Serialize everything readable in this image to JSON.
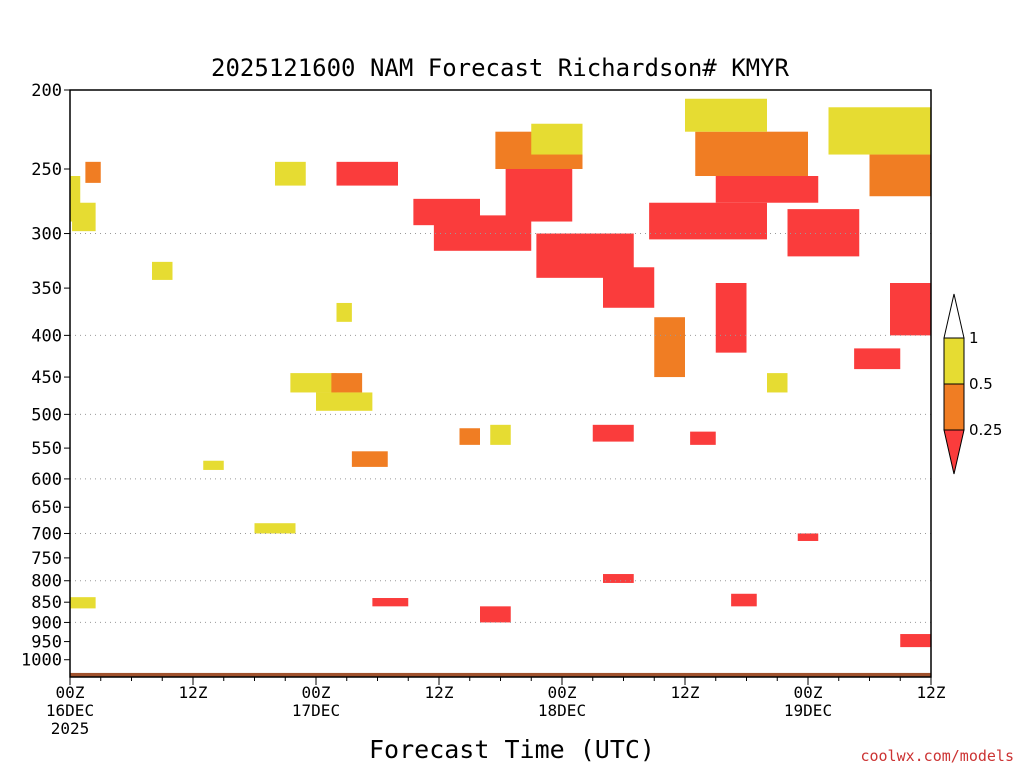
{
  "chart_data": {
    "type": "heatmap",
    "title": "2025121600 NAM Forecast Richardson# KMYR",
    "xlabel": "Forecast Time (UTC)",
    "ylabel": "",
    "x_range_hours": [
      0,
      84
    ],
    "y_range_hPa": [
      200,
      1050
    ],
    "y_scale": "log-pressure",
    "y_ticks": [
      200,
      250,
      300,
      350,
      400,
      450,
      500,
      550,
      600,
      650,
      700,
      750,
      800,
      850,
      900,
      950,
      1000
    ],
    "gridlines_hPa": [
      300,
      400,
      500,
      600,
      700,
      800,
      900
    ],
    "x_ticks": [
      {
        "hour": 0,
        "labels": [
          "00Z",
          "16DEC",
          "2025"
        ]
      },
      {
        "hour": 12,
        "labels": [
          "12Z"
        ]
      },
      {
        "hour": 24,
        "labels": [
          "00Z",
          "17DEC"
        ]
      },
      {
        "hour": 36,
        "labels": [
          "12Z"
        ]
      },
      {
        "hour": 48,
        "labels": [
          "00Z",
          "18DEC"
        ]
      },
      {
        "hour": 60,
        "labels": [
          "12Z"
        ]
      },
      {
        "hour": 72,
        "labels": [
          "00Z",
          "19DEC"
        ]
      },
      {
        "hour": 84,
        "labels": [
          "12Z"
        ]
      }
    ],
    "legend": {
      "placement": "right",
      "levels": [
        {
          "label": "1",
          "threshold": 1
        },
        {
          "label": "0.5",
          "threshold": 0.5
        },
        {
          "label": "0.25",
          "threshold": 0.25
        }
      ],
      "bins": [
        {
          "range": "> 1",
          "color": "#ffffff"
        },
        {
          "range": "0.5 - 1",
          "color": "#e6dc32"
        },
        {
          "range": "0.25 - 0.5",
          "color": "#f07d23"
        },
        {
          "range": "< 0.25",
          "color": "#fa3c3c"
        }
      ]
    },
    "ground_color": "#a0522d",
    "regions": [
      {
        "class": "yellow",
        "h": [
          0,
          1
        ],
        "p": [
          255,
          290
        ]
      },
      {
        "class": "orange",
        "h": [
          1.5,
          3
        ],
        "p": [
          245,
          260
        ]
      },
      {
        "class": "yellow",
        "h": [
          0.2,
          2.5
        ],
        "p": [
          275,
          298
        ]
      },
      {
        "class": "yellow",
        "h": [
          8,
          10
        ],
        "p": [
          325,
          342
        ]
      },
      {
        "class": "yellow",
        "h": [
          20,
          23
        ],
        "p": [
          245,
          262
        ]
      },
      {
        "class": "red",
        "h": [
          26,
          32
        ],
        "p": [
          245,
          262
        ]
      },
      {
        "class": "yellow",
        "h": [
          26,
          27.5
        ],
        "p": [
          365,
          385
        ]
      },
      {
        "class": "yellow",
        "h": [
          21.5,
          26
        ],
        "p": [
          445,
          470
        ]
      },
      {
        "class": "orange",
        "h": [
          25.5,
          28.5
        ],
        "p": [
          445,
          470
        ]
      },
      {
        "class": "yellow",
        "h": [
          24,
          29.5
        ],
        "p": [
          470,
          495
        ]
      },
      {
        "class": "red",
        "h": [
          33.5,
          40
        ],
        "p": [
          272,
          293
        ]
      },
      {
        "class": "red",
        "h": [
          35.5,
          45
        ],
        "p": [
          285,
          315
        ]
      },
      {
        "class": "red",
        "h": [
          42.5,
          49
        ],
        "p": [
          238,
          290
        ]
      },
      {
        "class": "red",
        "h": [
          45.5,
          55
        ],
        "p": [
          300,
          340
        ]
      },
      {
        "class": "red",
        "h": [
          52,
          57
        ],
        "p": [
          330,
          370
        ]
      },
      {
        "class": "orange",
        "h": [
          41.5,
          50
        ],
        "p": [
          225,
          250
        ]
      },
      {
        "class": "yellow",
        "h": [
          45,
          50
        ],
        "p": [
          220,
          240
        ]
      },
      {
        "class": "red",
        "h": [
          56.5,
          68
        ],
        "p": [
          275,
          305
        ]
      },
      {
        "class": "red",
        "h": [
          63,
          73
        ],
        "p": [
          255,
          275
        ]
      },
      {
        "class": "orange",
        "h": [
          61,
          72
        ],
        "p": [
          225,
          255
        ]
      },
      {
        "class": "yellow",
        "h": [
          60,
          68
        ],
        "p": [
          205,
          225
        ]
      },
      {
        "class": "red",
        "h": [
          70,
          77
        ],
        "p": [
          280,
          320
        ]
      },
      {
        "class": "yellow",
        "h": [
          74,
          84
        ],
        "p": [
          210,
          240
        ]
      },
      {
        "class": "orange",
        "h": [
          78,
          84
        ],
        "p": [
          240,
          270
        ]
      },
      {
        "class": "red",
        "h": [
          80,
          84
        ],
        "p": [
          345,
          400
        ]
      },
      {
        "class": "red",
        "h": [
          76.5,
          81
        ],
        "p": [
          415,
          440
        ]
      },
      {
        "class": "orange",
        "h": [
          57,
          60
        ],
        "p": [
          380,
          450
        ]
      },
      {
        "class": "red",
        "h": [
          63,
          66
        ],
        "p": [
          345,
          420
        ]
      },
      {
        "class": "yellow",
        "h": [
          68,
          70
        ],
        "p": [
          445,
          470
        ]
      },
      {
        "class": "yellow",
        "h": [
          41,
          43
        ],
        "p": [
          515,
          545
        ]
      },
      {
        "class": "orange",
        "h": [
          38,
          40
        ],
        "p": [
          520,
          545
        ]
      },
      {
        "class": "red",
        "h": [
          51,
          55
        ],
        "p": [
          515,
          540
        ]
      },
      {
        "class": "orange",
        "h": [
          27.5,
          31
        ],
        "p": [
          555,
          580
        ]
      },
      {
        "class": "red",
        "h": [
          60.5,
          63
        ],
        "p": [
          525,
          545
        ]
      },
      {
        "class": "yellow",
        "h": [
          13,
          15
        ],
        "p": [
          570,
          585
        ]
      },
      {
        "class": "yellow",
        "h": [
          18,
          22
        ],
        "p": [
          680,
          700
        ]
      },
      {
        "class": "red",
        "h": [
          64.5,
          67
        ],
        "p": [
          830,
          860
        ]
      },
      {
        "class": "red",
        "h": [
          29.5,
          33
        ],
        "p": [
          840,
          860
        ]
      },
      {
        "class": "red",
        "h": [
          40,
          43
        ],
        "p": [
          860,
          900
        ]
      },
      {
        "class": "red",
        "h": [
          52,
          55
        ],
        "p": [
          785,
          805
        ]
      },
      {
        "class": "red",
        "h": [
          71,
          73
        ],
        "p": [
          700,
          715
        ]
      },
      {
        "class": "red",
        "h": [
          81,
          84
        ],
        "p": [
          930,
          965
        ]
      },
      {
        "class": "yellow",
        "h": [
          0,
          2.5
        ],
        "p": [
          838,
          865
        ]
      }
    ]
  },
  "credit": "coolwx.com/models"
}
